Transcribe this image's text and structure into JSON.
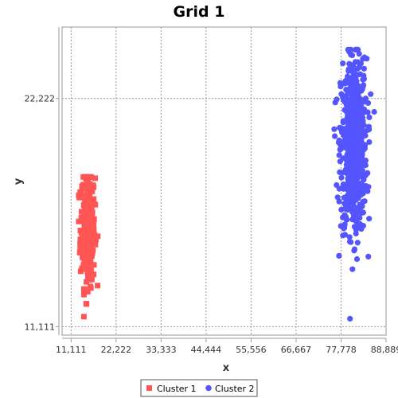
{
  "chart_data": {
    "type": "scatter",
    "title": "Grid 1",
    "xlabel": "x",
    "ylabel": "y",
    "xlim": [
      8889,
      88889
    ],
    "ylim": [
      10700,
      25700
    ],
    "x_ticks": [
      11111,
      22222,
      33333,
      44444,
      55556,
      66667,
      77778,
      88889
    ],
    "x_tick_labels": [
      "11,111",
      "22,222",
      "33,333",
      "44,444",
      "55,556",
      "66,667",
      "77,778",
      "88,889"
    ],
    "y_ticks": [
      11111,
      22222
    ],
    "y_tick_labels": [
      "11,111",
      "22,222"
    ],
    "grid": true,
    "legend_position": "bottom",
    "series": [
      {
        "name": "Cluster 1",
        "marker": "square",
        "color": "#ff5555",
        "center": [
          15200,
          15900
        ],
        "spread": [
          900,
          1400
        ],
        "count": 300,
        "x_range": [
          13000,
          17700
        ],
        "y_range": [
          11600,
          18400
        ]
      },
      {
        "name": "Cluster 2",
        "marker": "circle",
        "color": "#5555ff",
        "center": [
          80900,
          19900
        ],
        "spread": [
          1600,
          2100
        ],
        "count": 700,
        "x_range": [
          75000,
          86000
        ],
        "y_range": [
          11500,
          24600
        ]
      }
    ]
  }
}
